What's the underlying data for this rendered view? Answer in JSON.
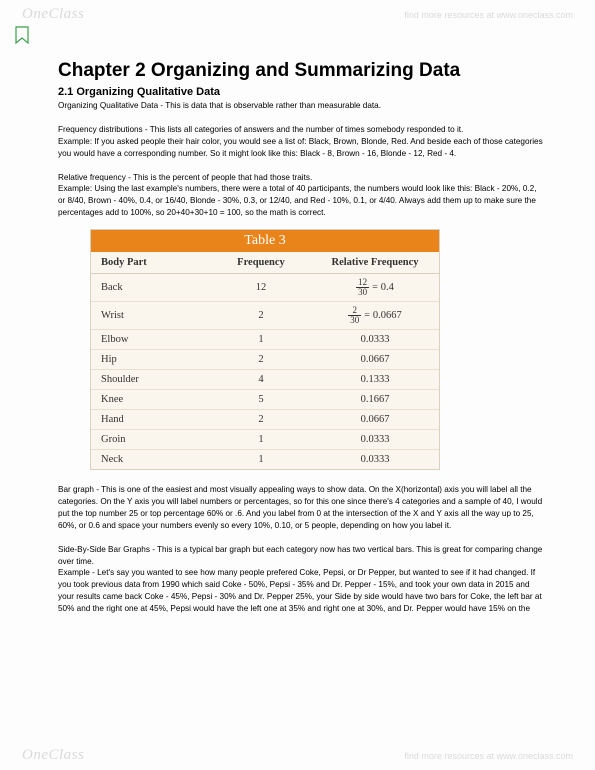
{
  "watermark": {
    "logo": "OneClass",
    "tagline": "find more resources at www.oneclass.com"
  },
  "chapter_title": "Chapter 2 Organizing and Summarizing Data",
  "section_title": "2.1 Organizing Qualitative Data",
  "p1": "Organizing Qualitative Data - This is data that is observable rather than measurable data.",
  "p2": "Frequency distributions - This lists all categories of answers and the number of times somebody responded to it.",
  "p3": "Example: If you asked people their hair color, you would see a list of: Black, Brown, Blonde, Red.  And beside each of those categories you would have a corresponding number.  So it might look like this:  Black - 8, Brown - 16, Blonde - 12, Red - 4.",
  "p4": "Relative frequency - This is the percent of people that had those traits.",
  "p5": "Example: Using the last example's numbers, there were a total of 40 participants, the numbers would look like this:  Black - 20%, 0.2, or 8/40, Brown - 40%, 0.4, or 16/40, Blonde - 30%, 0.3, or 12/40, and Red - 10%, 0.1, or 4/40.  Always add them up to make sure the percentages add to 100%, so 20+40+30+10 = 100, so the math is correct.",
  "table": {
    "title": "Table 3",
    "headers": [
      "Body Part",
      "Frequency",
      "Relative Frequency"
    ],
    "rows": [
      {
        "part": "Back",
        "freq": "12",
        "rf_num": "12",
        "rf_den": "30",
        "rf_val": "0.4"
      },
      {
        "part": "Wrist",
        "freq": "2",
        "rf_num": "2",
        "rf_den": "30",
        "rf_val": "0.0667"
      },
      {
        "part": "Elbow",
        "freq": "1",
        "rf_val": "0.0333"
      },
      {
        "part": "Hip",
        "freq": "2",
        "rf_val": "0.0667"
      },
      {
        "part": "Shoulder",
        "freq": "4",
        "rf_val": "0.1333"
      },
      {
        "part": "Knee",
        "freq": "5",
        "rf_val": "0.1667"
      },
      {
        "part": "Hand",
        "freq": "2",
        "rf_val": "0.0667"
      },
      {
        "part": "Groin",
        "freq": "1",
        "rf_val": "0.0333"
      },
      {
        "part": "Neck",
        "freq": "1",
        "rf_val": "0.0333"
      }
    ],
    "colors": {
      "header_bg": "#e8841a",
      "header_text": "#ffffff",
      "body_bg": "#fbf6ed",
      "border": "#d9d0c0"
    }
  },
  "p6": "Bar graph - This is one of the easiest and most visually appealing ways to show data.  On the X(horizontal) axis you will label all the categories.  On the Y axis you will label numbers or percentages, so for this one since there's 4 categories and a sample of 40, I would put the top number 25 or top percentage 60% or .6.  And you label from 0 at the intersection of the X and Y axis all the way up to 25, 60%, or 0.6 and space your numbers evenly so every 10%, 0.10, or 5 people, depending on how you label it.",
  "p7": "Side-By-Side Bar Graphs - This is a typical bar graph but each category now has two vertical bars.  This is great for comparing change over time.",
  "p8": "Example -  Let's say you wanted to see how many people prefered Coke, Pepsi, or Dr Pepper, but wanted to see if it had changed.  If you took previous data from 1990 which said Coke - 50%, Pepsi - 35% and Dr. Pepper - 15%, and took your own data in 2015 and your results came back Coke - 45%, Pepsi - 30% and Dr. Pepper 25%, your Side by side would have two bars for Coke, the left bar at 50% and the right one at 45%, Pepsi would have the left one at 35% and right one at 30%, and Dr. Pepper would have 15% on the"
}
